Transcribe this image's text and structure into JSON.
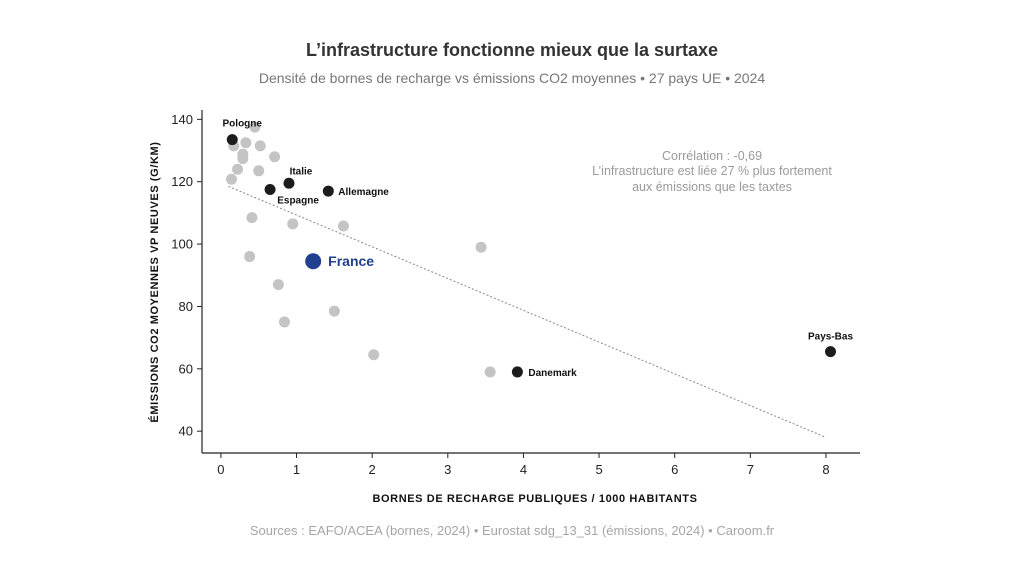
{
  "chart_data": {
    "type": "scatter",
    "title": "L’infrastructure fonctionne mieux que la surtaxe",
    "subtitle": "Densité de bornes de recharge vs émissions CO2 moyennes  •  27 pays UE  •  2024",
    "xlabel": "BORNES DE RECHARGE PUBLIQUES / 1000 HABITANTS",
    "ylabel": "ÉMISSIONS CO2 MOYENNES VP NEUVES (G/KM)",
    "xlim": [
      -0.25,
      8.45
    ],
    "ylim": [
      33,
      143
    ],
    "x_ticks": [
      "0",
      "1",
      "2",
      "3",
      "4",
      "5",
      "6",
      "7",
      "8"
    ],
    "y_ticks": [
      "40",
      "60",
      "80",
      "100",
      "120",
      "140"
    ],
    "grid": false,
    "trend": {
      "style": "dotted",
      "x": [
        0.1,
        8.0
      ],
      "y": [
        118.5,
        38
      ]
    },
    "annotation": [
      "Corrélation : -0,69",
      "L’infrastructure est liée 27 % plus fortement",
      "aux émissions que les taxtes"
    ],
    "colors": {
      "other": "#c4c4c4",
      "named": "#1c1c1c",
      "highlight": "#1f3f8f",
      "trend": "#888888"
    },
    "points": [
      {
        "x": 0.15,
        "y": 133.5,
        "label": "Pologne",
        "kind": "named"
      },
      {
        "x": 0.9,
        "y": 119.5,
        "label": "Italie",
        "kind": "named"
      },
      {
        "x": 0.65,
        "y": 117.5,
        "label": "Espagne",
        "kind": "named"
      },
      {
        "x": 1.42,
        "y": 117,
        "label": "Allemagne",
        "kind": "named"
      },
      {
        "x": 1.22,
        "y": 94.5,
        "label": "France",
        "kind": "highlight"
      },
      {
        "x": 3.92,
        "y": 59,
        "label": "Danemark",
        "kind": "named"
      },
      {
        "x": 8.06,
        "y": 65.5,
        "label": "Pays-Bas",
        "kind": "named"
      },
      {
        "x": 0.45,
        "y": 137.5,
        "kind": "other"
      },
      {
        "x": 0.17,
        "y": 131.5,
        "kind": "other"
      },
      {
        "x": 0.33,
        "y": 132.5,
        "kind": "other"
      },
      {
        "x": 0.52,
        "y": 131.5,
        "kind": "other"
      },
      {
        "x": 0.29,
        "y": 128.8,
        "kind": "other"
      },
      {
        "x": 0.29,
        "y": 127.4,
        "kind": "other"
      },
      {
        "x": 0.71,
        "y": 128,
        "kind": "other"
      },
      {
        "x": 0.22,
        "y": 124,
        "kind": "other"
      },
      {
        "x": 0.5,
        "y": 123.5,
        "kind": "other"
      },
      {
        "x": 0.14,
        "y": 120.8,
        "kind": "other"
      },
      {
        "x": 0.41,
        "y": 108.5,
        "kind": "other"
      },
      {
        "x": 0.95,
        "y": 106.5,
        "kind": "other"
      },
      {
        "x": 1.62,
        "y": 105.8,
        "kind": "other"
      },
      {
        "x": 3.44,
        "y": 99,
        "kind": "other"
      },
      {
        "x": 0.38,
        "y": 96,
        "kind": "other"
      },
      {
        "x": 0.76,
        "y": 87,
        "kind": "other"
      },
      {
        "x": 1.5,
        "y": 78.5,
        "kind": "other"
      },
      {
        "x": 0.84,
        "y": 75,
        "kind": "other"
      },
      {
        "x": 2.02,
        "y": 64.5,
        "kind": "other"
      },
      {
        "x": 3.56,
        "y": 59,
        "kind": "other"
      }
    ]
  },
  "source": "Sources : EAFO/ACEA (bornes, 2024)  •  Eurostat sdg_13_31 (émissions, 2024)  •  Caroom.fr"
}
